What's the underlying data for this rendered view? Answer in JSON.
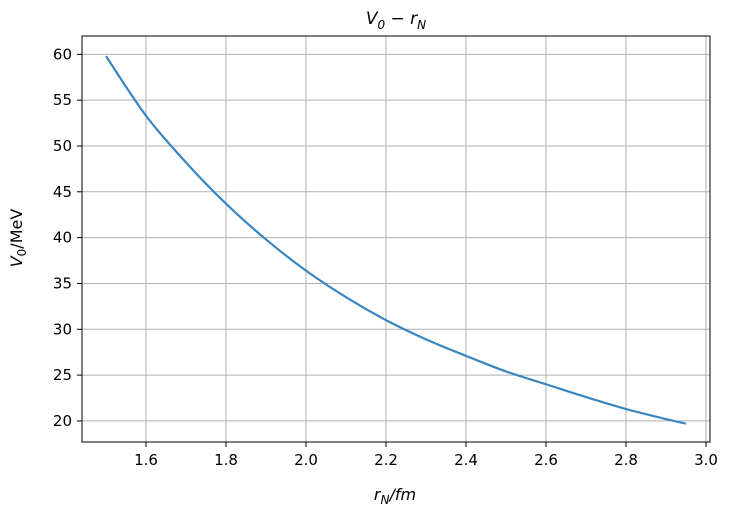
{
  "chart_data": {
    "type": "line",
    "title": {
      "main": "V",
      "sub1": "0",
      "mid": " − r",
      "sub2": "N"
    },
    "xlabel": {
      "main": "r",
      "sub": "N",
      "rest": "/fm"
    },
    "ylabel": {
      "main": "V",
      "sub": "0",
      "rest": "/MeV"
    },
    "xlim": [
      1.44,
      3.01
    ],
    "ylim": [
      17.7,
      62.0
    ],
    "xticks": [
      1.6,
      1.8,
      2.0,
      2.2,
      2.4,
      2.6,
      2.8,
      3.0
    ],
    "xtick_labels": [
      "1.6",
      "1.8",
      "2.0",
      "2.2",
      "2.4",
      "2.6",
      "2.8",
      "3.0"
    ],
    "yticks": [
      20,
      25,
      30,
      35,
      40,
      45,
      50,
      55,
      60
    ],
    "ytick_labels": [
      "20",
      "25",
      "30",
      "35",
      "40",
      "45",
      "50",
      "55",
      "60"
    ],
    "grid": true,
    "color": "#3a86c0",
    "series": [
      {
        "x": [
          1.5,
          1.6,
          1.7,
          1.8,
          1.9,
          2.0,
          2.1,
          2.2,
          2.3,
          2.4,
          2.5,
          2.6,
          2.7,
          2.8,
          2.9,
          2.95
        ],
        "y": [
          59.8,
          53.3,
          48.2,
          43.7,
          39.8,
          36.4,
          33.5,
          31.0,
          28.9,
          27.1,
          25.4,
          24.0,
          22.6,
          21.3,
          20.2,
          19.7
        ]
      }
    ]
  }
}
